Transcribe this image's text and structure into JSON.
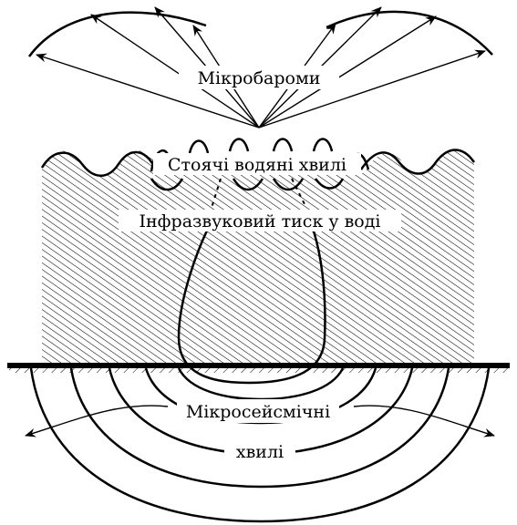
{
  "labels": {
    "microbaroms": "Мікробароми",
    "standing_waves": "Стоячі водяні хвилі",
    "infrasound_pressure": "Інфразвуковий тиск у воді",
    "microseisms_line1": "Мікросейсмічні",
    "microseisms_line2": "хвилі"
  },
  "colors": {
    "ink": "#000000",
    "background": "#ffffff"
  }
}
